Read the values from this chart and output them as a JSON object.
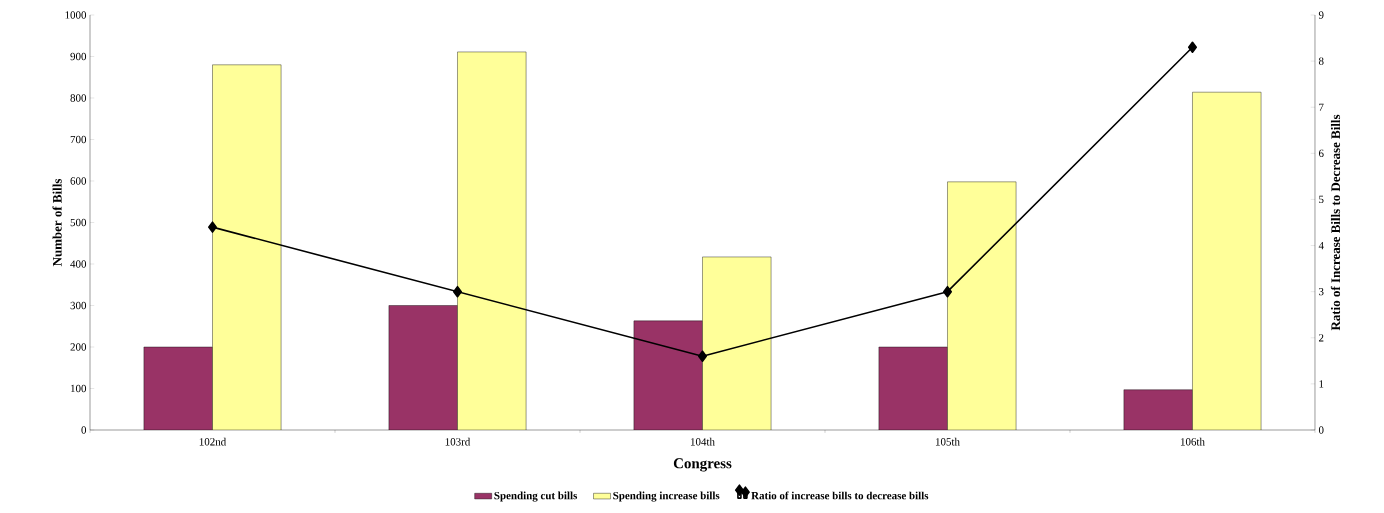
{
  "chart_data": {
    "type": "bar",
    "xlabel": "Congress",
    "ylabel": "Number of Bills",
    "y2label": "Ratio of Increase Bills to Decrease Bills",
    "categories": [
      "102nd",
      "103rd",
      "104th",
      "105th",
      "106th"
    ],
    "series": [
      {
        "name": "Spending cut bills",
        "color": "#993366",
        "values": [
          200,
          300,
          263,
          200,
          97
        ]
      },
      {
        "name": "Spending increase bills",
        "color": "#ffff99",
        "values": [
          880,
          911,
          417,
          598,
          814
        ]
      },
      {
        "name": "Ratio of increase bills to decrease bills",
        "type": "line",
        "axis": "y2",
        "color": "#000000",
        "marker": "diamond",
        "values": [
          4.4,
          3.0,
          1.6,
          3.0,
          8.3
        ]
      }
    ],
    "ylim": [
      0,
      1000
    ],
    "yticks": [
      0,
      100,
      200,
      300,
      400,
      500,
      600,
      700,
      800,
      900,
      1000
    ],
    "y2lim": [
      0,
      9
    ],
    "y2ticks": [
      0,
      1,
      2,
      3,
      4,
      5,
      6,
      7,
      8,
      9
    ],
    "grid": false,
    "legend": "bottom"
  }
}
